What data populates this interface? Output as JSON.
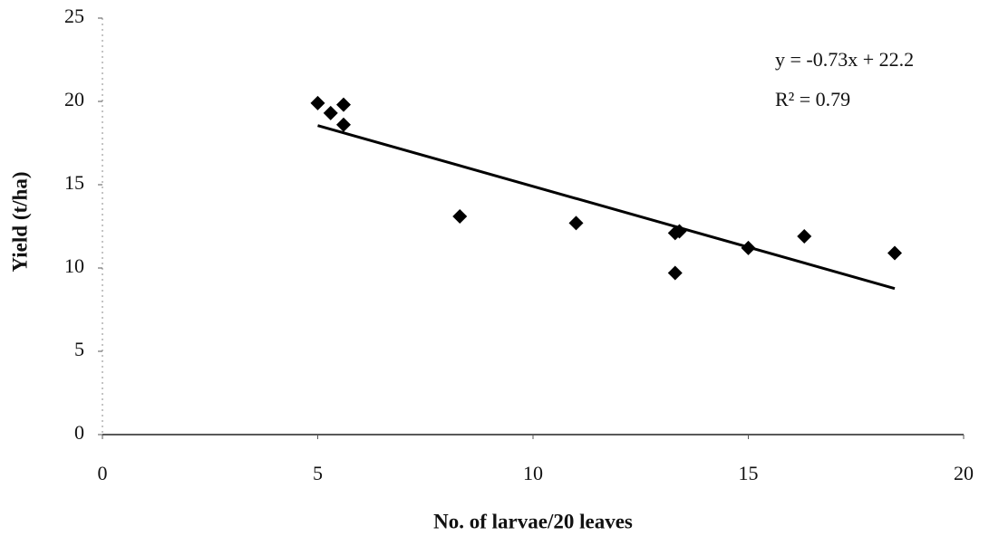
{
  "chart_data": {
    "type": "scatter",
    "x_label": "No. of larvae/20 leaves",
    "y_label": "Yield (t/ha)",
    "x": [
      5,
      5.3,
      5.6,
      5.6,
      8.3,
      11,
      13.3,
      13.4,
      13.3,
      15,
      16.3,
      18.4
    ],
    "values": [
      19.9,
      19.3,
      19.8,
      18.6,
      13.1,
      12.7,
      12.1,
      12.2,
      9.7,
      11.2,
      11.9,
      10.9
    ],
    "color": "#000000",
    "trendline": {
      "x": [
        5,
        18.4
      ],
      "values": [
        18.55,
        8.77
      ]
    },
    "annotations": [
      "y = -0.73x + 22.2",
      "R² = 0.79"
    ],
    "xlim": [
      0,
      20
    ],
    "xticks": [
      0,
      5,
      10,
      15,
      20
    ],
    "ylim": [
      0,
      25
    ],
    "yticks": [
      0,
      5,
      10,
      15,
      20,
      25
    ],
    "grid": false
  }
}
